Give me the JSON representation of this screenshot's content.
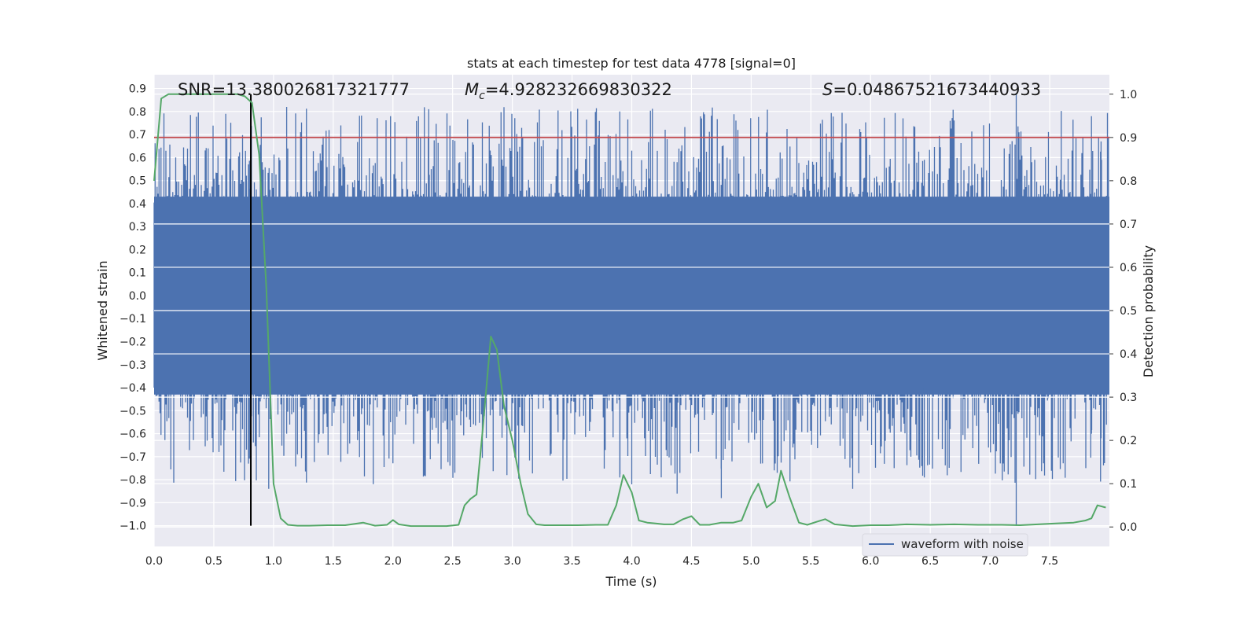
{
  "chart_data": {
    "type": "line",
    "title": "stats at each timestep for test data 4778 [signal=0]",
    "xlabel": "Time (s)",
    "ylabel": "Whitened strain",
    "y2label": "Detection probability",
    "xlim": [
      0,
      8
    ],
    "ylim": [
      -1.09,
      0.96
    ],
    "y2lim": [
      -0.045,
      1.045
    ],
    "xticks": [
      "0.0",
      "0.5",
      "1.0",
      "1.5",
      "2.0",
      "2.5",
      "3.0",
      "3.5",
      "4.0",
      "4.5",
      "5.0",
      "5.5",
      "6.0",
      "6.5",
      "7.0",
      "7.5"
    ],
    "yticks": [
      "0.9",
      "0.8",
      "0.7",
      "0.6",
      "0.5",
      "0.4",
      "0.3",
      "0.2",
      "0.1",
      "0.0",
      "-0.1",
      "-0.2",
      "-0.3",
      "-0.4",
      "-0.5",
      "-0.6",
      "-0.7",
      "-0.8",
      "-0.9",
      "-1.0"
    ],
    "y2ticks": [
      "1.0",
      "0.9",
      "0.8",
      "0.7",
      "0.6",
      "0.5",
      "0.4",
      "0.3",
      "0.2",
      "0.1",
      "0.0"
    ],
    "grid": true,
    "legend": {
      "position": "bottom-right",
      "entries": [
        "waveform with noise"
      ]
    },
    "annotations": {
      "snr": "SNR=13.380026817321777",
      "mc_label": "M",
      "mc_sub": "c",
      "mc_value": "=4.928232669830322",
      "s_label": "S",
      "s_value": "=0.04867521673440933"
    },
    "threshold": {
      "value": 0.9,
      "axis": "right",
      "color": "#c44e52"
    },
    "marker_line": {
      "x": 0.81,
      "color": "#000000"
    },
    "colors": {
      "waveform": "#4c72b0",
      "probability": "#55a868",
      "threshold": "#c44e52",
      "background": "#eaeaf2"
    },
    "series": [
      {
        "name": "waveform with noise",
        "style": "dense noise band",
        "core_band": [
          -0.43,
          0.43
        ],
        "spike_max": 0.88,
        "spike_min": -1.0
      },
      {
        "style": "line",
        "axis": "right",
        "x": [
          0.0,
          0.06,
          0.12,
          0.2,
          0.3,
          0.4,
          0.5,
          0.6,
          0.7,
          0.76,
          0.82,
          0.88,
          0.94,
          1.0,
          1.06,
          1.12,
          1.2,
          1.3,
          1.45,
          1.6,
          1.75,
          1.85,
          1.95,
          2.0,
          2.05,
          2.15,
          2.3,
          2.45,
          2.55,
          2.6,
          2.65,
          2.7,
          2.75,
          2.82,
          2.87,
          2.93,
          3.0,
          3.07,
          3.13,
          3.2,
          3.27,
          3.4,
          3.55,
          3.7,
          3.8,
          3.87,
          3.93,
          4.0,
          4.06,
          4.13,
          4.2,
          4.27,
          4.35,
          4.43,
          4.5,
          4.57,
          4.65,
          4.75,
          4.85,
          4.92,
          5.0,
          5.06,
          5.13,
          5.2,
          5.25,
          5.32,
          5.4,
          5.47,
          5.55,
          5.62,
          5.7,
          5.85,
          6.0,
          6.15,
          6.3,
          6.5,
          6.7,
          6.9,
          7.1,
          7.25,
          7.4,
          7.55,
          7.7,
          7.8,
          7.85,
          7.9,
          7.97
        ],
        "values": [
          0.8,
          0.99,
          1.0,
          1.0,
          1.0,
          1.0,
          1.0,
          1.0,
          1.0,
          0.995,
          0.98,
          0.86,
          0.55,
          0.1,
          0.02,
          0.005,
          0.003,
          0.003,
          0.004,
          0.004,
          0.01,
          0.003,
          0.005,
          0.016,
          0.006,
          0.002,
          0.002,
          0.002,
          0.005,
          0.05,
          0.065,
          0.075,
          0.22,
          0.44,
          0.41,
          0.28,
          0.2,
          0.1,
          0.03,
          0.006,
          0.004,
          0.004,
          0.004,
          0.005,
          0.005,
          0.05,
          0.12,
          0.08,
          0.015,
          0.01,
          0.008,
          0.006,
          0.006,
          0.018,
          0.025,
          0.005,
          0.005,
          0.01,
          0.01,
          0.015,
          0.07,
          0.1,
          0.045,
          0.06,
          0.13,
          0.07,
          0.01,
          0.005,
          0.012,
          0.018,
          0.006,
          0.002,
          0.004,
          0.004,
          0.006,
          0.005,
          0.006,
          0.005,
          0.005,
          0.004,
          0.006,
          0.008,
          0.01,
          0.015,
          0.02,
          0.05,
          0.045
        ]
      }
    ]
  }
}
